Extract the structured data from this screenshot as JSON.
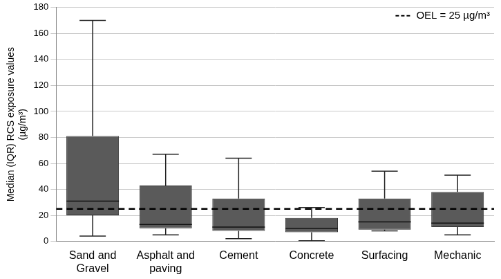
{
  "chart_data": {
    "type": "box",
    "y_label": [
      "Median (IQR) RCS exposure values",
      "(µg/m³)"
    ],
    "categories": [
      "Sand and Gravel",
      "Asphalt and paving",
      "Cement",
      "Concrete",
      "Surfacing",
      "Mechanic"
    ],
    "min": [
      4,
      5,
      2,
      0.5,
      8,
      5
    ],
    "q1": [
      20,
      10,
      8,
      7,
      9,
      11
    ],
    "median": [
      31,
      13,
      11,
      10,
      15,
      14
    ],
    "q3": [
      81,
      43,
      33,
      18,
      33,
      38
    ],
    "max": [
      170,
      67,
      64,
      26,
      54,
      51
    ],
    "color": "#5a5a5a",
    "reference_line": {
      "value": 25,
      "label": "OEL = 25 µg/m³",
      "line_style": "dashed"
    },
    "ylim": [
      0,
      180
    ],
    "yticks": [
      0,
      20,
      40,
      60,
      80,
      100,
      120,
      140,
      160,
      180
    ],
    "grid": true
  }
}
